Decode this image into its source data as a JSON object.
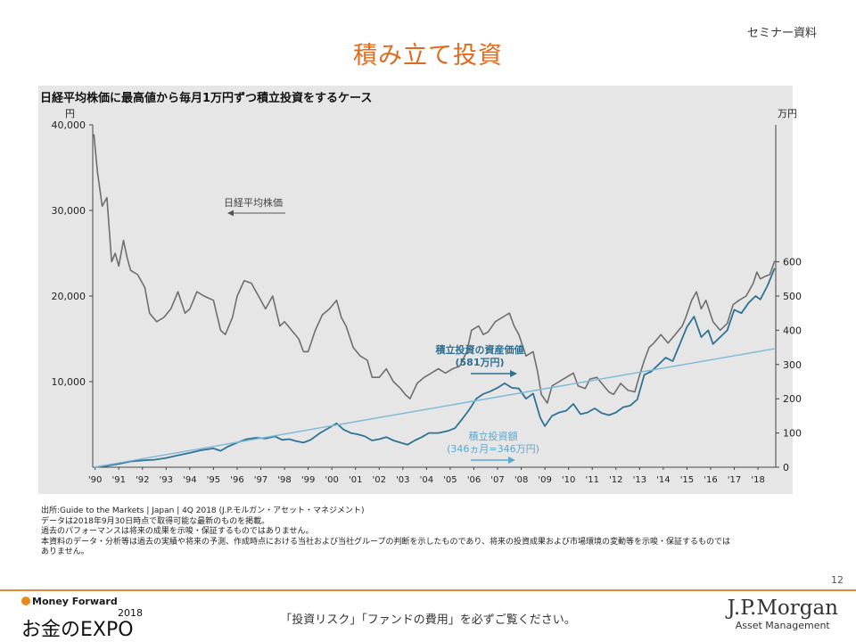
{
  "header": {
    "tag": "セミナー資料",
    "title": "積み立て投資"
  },
  "chart_data": {
    "type": "line",
    "title": "日経平均株価に最高値から毎月1万円ずつ積立投資をするケース",
    "left_axis_unit": "円",
    "right_axis_unit": "万円",
    "left_axis": {
      "ticks": [
        10000,
        20000,
        30000,
        40000
      ],
      "tick_labels": [
        "10,000",
        "20,000",
        "30,000",
        "40,000"
      ]
    },
    "right_axis": {
      "ticks": [
        0,
        100,
        200,
        300,
        400,
        500,
        600
      ],
      "tick_labels": [
        "0",
        "100",
        "200",
        "300",
        "400",
        "500",
        "600"
      ]
    },
    "x_ticks": [
      "'90",
      "'91",
      "'92",
      "'93",
      "'94",
      "'95",
      "'96",
      "'97",
      "'98",
      "'99",
      "'00",
      "'01",
      "'02",
      "'03",
      "'04",
      "'05",
      "'06",
      "'07",
      "'08",
      "'09",
      "'10",
      "'11",
      "'12",
      "'13",
      "'14",
      "'15",
      "'16",
      "'17",
      "'18"
    ],
    "x_range": [
      1989.9,
      2018.75
    ],
    "series": [
      {
        "name": "日経平均株価",
        "axis": "left",
        "color": "#6e6e6e",
        "x": [
          1989.95,
          1990.1,
          1990.3,
          1990.5,
          1990.7,
          1990.85,
          1991.0,
          1991.2,
          1991.35,
          1991.5,
          1991.8,
          1992.1,
          1992.3,
          1992.6,
          1992.9,
          1993.2,
          1993.5,
          1993.8,
          1994.0,
          1994.3,
          1994.6,
          1995.0,
          1995.3,
          1995.5,
          1995.8,
          1996.0,
          1996.3,
          1996.6,
          1996.9,
          1997.2,
          1997.5,
          1997.8,
          1998.0,
          1998.3,
          1998.6,
          1998.8,
          1999.0,
          1999.3,
          1999.6,
          1999.9,
          2000.2,
          2000.4,
          2000.6,
          2000.9,
          2001.2,
          2001.5,
          2001.7,
          2002.0,
          2002.3,
          2002.6,
          2002.9,
          2003.1,
          2003.3,
          2003.6,
          2003.9,
          2004.2,
          2004.5,
          2004.8,
          2005.1,
          2005.4,
          2005.7,
          2005.9,
          2006.2,
          2006.4,
          2006.6,
          2006.9,
          2007.2,
          2007.5,
          2007.7,
          2007.9,
          2008.2,
          2008.5,
          2008.7,
          2008.85,
          2009.1,
          2009.3,
          2009.6,
          2009.9,
          2010.2,
          2010.4,
          2010.7,
          2010.9,
          2011.2,
          2011.4,
          2011.7,
          2011.9,
          2012.2,
          2012.5,
          2012.8,
          2012.95,
          2013.2,
          2013.4,
          2013.6,
          2013.9,
          2014.2,
          2014.5,
          2014.8,
          2014.95,
          2015.2,
          2015.4,
          2015.6,
          2015.8,
          2016.1,
          2016.4,
          2016.7,
          2016.95,
          2017.2,
          2017.5,
          2017.8,
          2017.95,
          2018.1,
          2018.3,
          2018.5,
          2018.7
        ],
        "values": [
          38900,
          34500,
          30500,
          31500,
          24000,
          25000,
          23500,
          26500,
          24500,
          23000,
          22500,
          21000,
          18000,
          17000,
          17500,
          18500,
          20500,
          18000,
          18500,
          20500,
          20000,
          19500,
          16000,
          15500,
          17500,
          20000,
          21800,
          21500,
          20000,
          18500,
          20000,
          16500,
          17000,
          16000,
          15000,
          13500,
          13500,
          16000,
          17800,
          18500,
          19500,
          17500,
          16500,
          14000,
          13000,
          12500,
          10500,
          10500,
          11500,
          10000,
          9200,
          8500,
          8000,
          9800,
          10500,
          11000,
          11500,
          11000,
          11500,
          11800,
          13500,
          16000,
          16500,
          15500,
          15800,
          17000,
          17500,
          18000,
          16500,
          15500,
          13000,
          13500,
          11000,
          8500,
          7500,
          9500,
          10000,
          10500,
          11000,
          9500,
          9200,
          10300,
          10500,
          9800,
          8800,
          8500,
          9800,
          9000,
          8800,
          10300,
          12500,
          14000,
          14500,
          15500,
          14500,
          15500,
          16500,
          17500,
          19500,
          20500,
          18500,
          19500,
          17000,
          16000,
          16800,
          19000,
          19500,
          20000,
          21500,
          22800,
          22000,
          22300,
          22500,
          24100
        ]
      },
      {
        "name": "積立投資の資産価値",
        "axis": "right",
        "color": "#2f7294",
        "x": [
          1989.95,
          1990.5,
          1991.0,
          1991.5,
          1992.0,
          1992.5,
          1993.0,
          1993.5,
          1994.0,
          1994.5,
          1995.0,
          1995.3,
          1995.6,
          1996.0,
          1996.4,
          1996.8,
          1997.2,
          1997.6,
          1997.9,
          1998.2,
          1998.5,
          1998.8,
          1999.1,
          1999.5,
          1999.9,
          2000.2,
          2000.5,
          2000.8,
          2001.1,
          2001.4,
          2001.7,
          2002.0,
          2002.3,
          2002.6,
          2002.9,
          2003.2,
          2003.5,
          2003.8,
          2004.1,
          2004.5,
          2004.9,
          2005.2,
          2005.5,
          2005.8,
          2006.1,
          2006.4,
          2006.7,
          2007.0,
          2007.3,
          2007.6,
          2007.9,
          2008.2,
          2008.5,
          2008.8,
          2009.0,
          2009.3,
          2009.6,
          2009.9,
          2010.2,
          2010.5,
          2010.8,
          2011.1,
          2011.4,
          2011.7,
          2012.0,
          2012.3,
          2012.6,
          2012.9,
          2013.2,
          2013.5,
          2013.8,
          2014.1,
          2014.4,
          2014.7,
          2015.0,
          2015.3,
          2015.6,
          2015.9,
          2016.1,
          2016.4,
          2016.7,
          2017.0,
          2017.3,
          2017.6,
          2017.9,
          2018.1,
          2018.4,
          2018.7
        ],
        "values": [
          0,
          4,
          10,
          17,
          20,
          22,
          27,
          35,
          42,
          50,
          55,
          48,
          60,
          72,
          82,
          86,
          84,
          90,
          80,
          82,
          76,
          72,
          80,
          100,
          116,
          128,
          110,
          100,
          96,
          90,
          78,
          82,
          88,
          78,
          72,
          66,
          78,
          88,
          100,
          100,
          106,
          114,
          140,
          168,
          200,
          214,
          222,
          232,
          245,
          232,
          230,
          200,
          215,
          145,
          120,
          150,
          160,
          165,
          185,
          155,
          160,
          172,
          158,
          152,
          160,
          175,
          180,
          198,
          270,
          280,
          300,
          320,
          310,
          360,
          410,
          440,
          380,
          400,
          360,
          380,
          400,
          460,
          450,
          480,
          500,
          490,
          530,
          581
        ]
      },
      {
        "name": "積立投資額",
        "axis": "right",
        "color": "#7db8d8",
        "x": [
          1989.95,
          2018.7
        ],
        "values": [
          0,
          346
        ]
      }
    ],
    "annotations": {
      "nikkei_label": "日経平均株価",
      "value_label_line1": "積立投資の資産価値",
      "value_label_line2": "(581万円)",
      "invest_label_line1": "積立投資額",
      "invest_label_line2": "(346ヵ月=346万円)"
    }
  },
  "notes": [
    "出所:Guide to the Markets | Japan | 4Q 2018 (J.P.モルガン・アセット・マネジメント)",
    "データは2018年9月30日時点で取得可能な最新のものを掲載。",
    "過去のパフォーマンスは将来の成果を示唆・保証するものではありません。",
    "本資料のデータ・分析等は過去の実績や将来の予測、作成時点における当社および当社グループの判断を示したものであり、将来の投資成果および市場環境の変動等を示唆・保証するものでは",
    "ありません。"
  ],
  "page_number": "12",
  "footer": {
    "mf_brand": "Money Forward",
    "mf_year": "2018",
    "mf_expo": "お金のEXPO",
    "message": "「投資リスク」「ファンドの費用」を必ずご覧ください。",
    "jpm_name": "J.P.Morgan",
    "jpm_sub": "Asset Management"
  }
}
